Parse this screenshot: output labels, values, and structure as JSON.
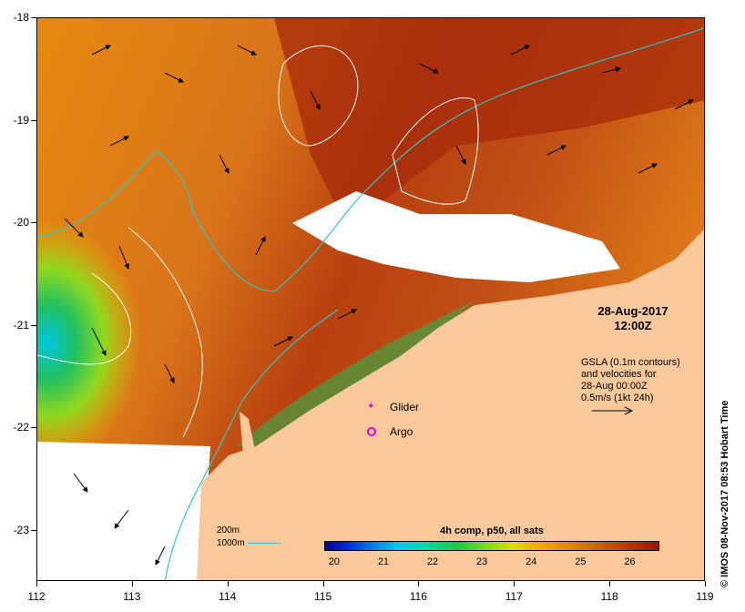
{
  "map": {
    "y_ticks": [
      "-18",
      "-19",
      "-20",
      "-21",
      "-22",
      "-23"
    ],
    "x_ticks": [
      "112",
      "113",
      "114",
      "115",
      "116",
      "117",
      "118",
      "119"
    ],
    "lon_range": [
      112,
      119
    ],
    "lat_range": [
      -18,
      -23.5
    ]
  },
  "date_block": {
    "date": "28-Aug-2017",
    "time": "12:00Z"
  },
  "gsla_block": {
    "line1": "GSLA (0.1m contours)",
    "line2": "and velocities for",
    "line3": "28-Aug 00:00Z",
    "line4": "0.5m/s (1kt 24h)"
  },
  "legend": {
    "glider": "Glider",
    "argo": "Argo"
  },
  "contour_key": {
    "line1": "200m",
    "line2": "1000m"
  },
  "colorbar": {
    "title": "4h comp, p50, all sats",
    "ticks": [
      "20",
      "21",
      "22",
      "23",
      "24",
      "25",
      "26"
    ],
    "range": [
      19.8,
      26.6
    ]
  },
  "credit": "© IMOS 08-Nov-2017 08:53 Hobart Time",
  "colors": {
    "land": "#f9c89b",
    "contour": "#2ec6c6",
    "gsla": "#ffffff",
    "magenta": "#e000e0"
  }
}
